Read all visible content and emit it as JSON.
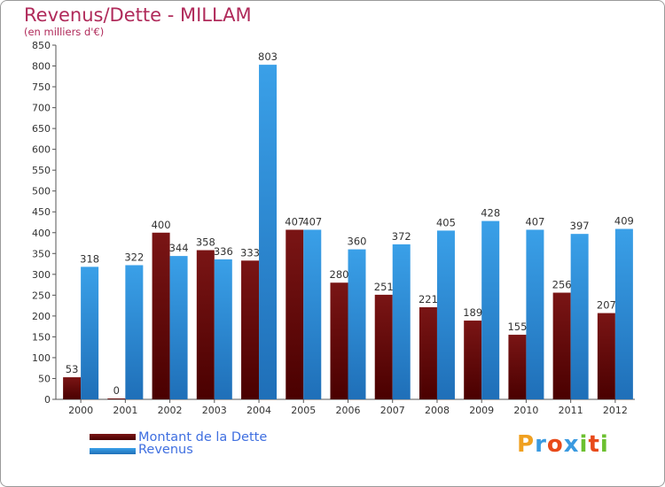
{
  "header": {
    "title": "Revenus/Dette - MILLAM",
    "subtitle": "(en milliers d'€)"
  },
  "colors": {
    "debt": "#7a1515",
    "debt_dark": "#4a0000",
    "revenue": "#3aa0e8",
    "revenue_dark": "#1f6fb8",
    "title": "#b02a5a",
    "legend_text": "#3f6fe0",
    "axis_text": "#333333"
  },
  "legend": {
    "debt_label": "Montant de la Dette",
    "revenue_label": "Revenus"
  },
  "brand": {
    "letters": [
      "P",
      "r",
      "o",
      "x",
      "i",
      "t",
      "i"
    ],
    "colors": [
      "#f0a020",
      "#3a9ae0",
      "#e84a1a",
      "#3a9ae0",
      "#6cc030",
      "#e84a1a",
      "#6cc030"
    ]
  },
  "chart_data": {
    "type": "bar",
    "title": "Revenus/Dette - MILLAM",
    "subtitle": "(en milliers d'€)",
    "xlabel": "",
    "ylabel": "",
    "ylim": [
      0,
      850
    ],
    "yticks": [
      0,
      50,
      100,
      150,
      200,
      250,
      300,
      350,
      400,
      450,
      500,
      550,
      600,
      650,
      700,
      750,
      800,
      850
    ],
    "categories": [
      "2000",
      "2001",
      "2002",
      "2003",
      "2004",
      "2005",
      "2006",
      "2007",
      "2008",
      "2009",
      "2010",
      "2011",
      "2012"
    ],
    "series": [
      {
        "name": "Montant de la Dette",
        "values": [
          53,
          0,
          400,
          358,
          333,
          407,
          280,
          251,
          221,
          189,
          155,
          256,
          207
        ]
      },
      {
        "name": "Revenus",
        "values": [
          318,
          322,
          344,
          336,
          803,
          407,
          360,
          372,
          405,
          428,
          407,
          397,
          409
        ]
      }
    ],
    "legend_position": "bottom-left",
    "grid": false
  }
}
